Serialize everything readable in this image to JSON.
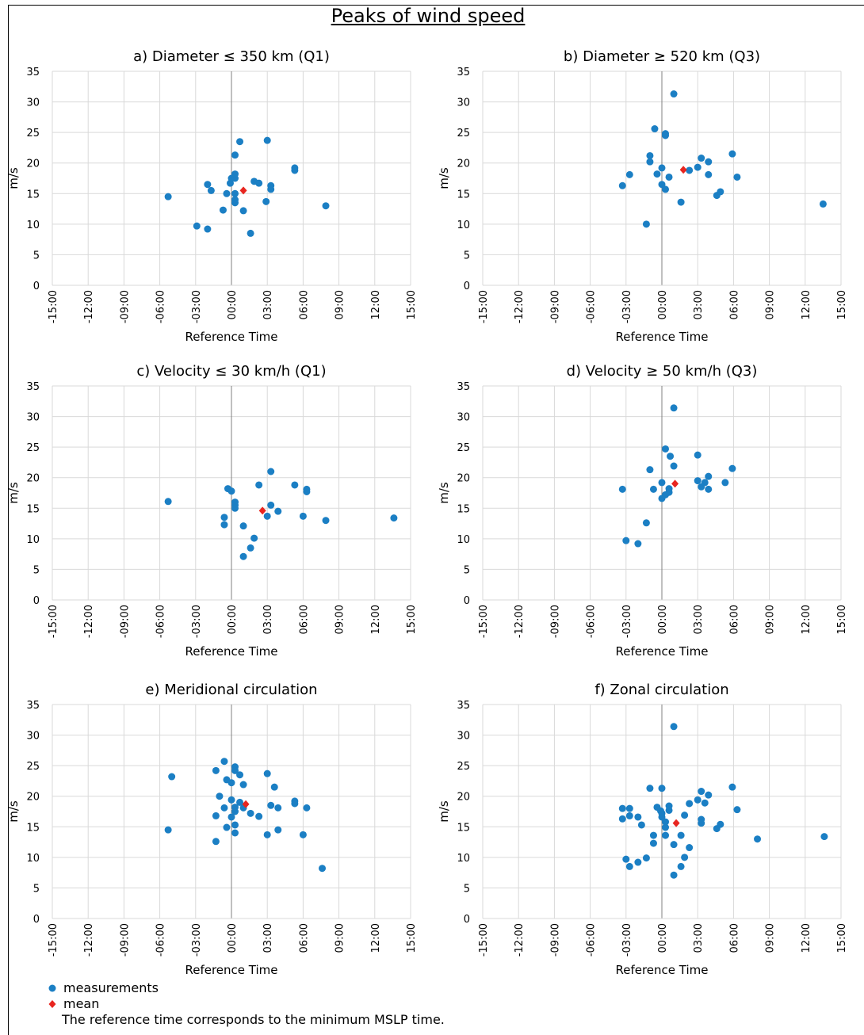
{
  "title": "Peaks of wind speed",
  "colors": {
    "measurements": "#1b7fc4",
    "mean": "#e8251f",
    "grid": "#d9d9d9",
    "axis": "#808080"
  },
  "legend": {
    "measurements_label": "measurements",
    "mean_label": "mean",
    "note": "The reference time corresponds to the minimum MSLP time."
  },
  "chart_data": [
    {
      "type": "scatter",
      "title": "a) Diameter ≤ 350 km (Q1)",
      "xlabel": "Reference Time",
      "ylabel": "m/s",
      "xlim": [
        -15,
        15
      ],
      "ylim": [
        0,
        35
      ],
      "xticks": [
        "-15:00",
        "-12:00",
        "-09:00",
        "-06:00",
        "-03:00",
        "00:00",
        "03:00",
        "06:00",
        "09:00",
        "12:00",
        "15:00"
      ],
      "yticks": [
        "0",
        "5",
        "10",
        "15",
        "20",
        "25",
        "30",
        "35"
      ],
      "series": [
        {
          "name": "measurements",
          "points": [
            [
              -5.3,
              14.5
            ],
            [
              -2.9,
              9.7
            ],
            [
              -2.0,
              9.2
            ],
            [
              -2.0,
              16.5
            ],
            [
              -1.7,
              15.5
            ],
            [
              -0.7,
              12.3
            ],
            [
              -0.4,
              15.0
            ],
            [
              -0.1,
              16.7
            ],
            [
              0.0,
              17.5
            ],
            [
              0.3,
              13.5
            ],
            [
              0.3,
              14.0
            ],
            [
              0.3,
              15.0
            ],
            [
              0.3,
              17.5
            ],
            [
              0.3,
              18.2
            ],
            [
              0.3,
              21.3
            ],
            [
              0.7,
              23.5
            ],
            [
              1.0,
              12.2
            ],
            [
              1.6,
              8.5
            ],
            [
              1.9,
              17.0
            ],
            [
              2.3,
              16.7
            ],
            [
              2.9,
              13.7
            ],
            [
              3.0,
              23.7
            ],
            [
              3.3,
              15.7
            ],
            [
              3.3,
              16.3
            ],
            [
              5.3,
              18.8
            ],
            [
              5.3,
              19.2
            ],
            [
              7.9,
              13.0
            ]
          ]
        },
        {
          "name": "mean",
          "points": [
            [
              1.0,
              15.5
            ]
          ]
        }
      ]
    },
    {
      "type": "scatter",
      "title": "b) Diameter ≥ 520 km (Q3)",
      "xlabel": "Reference Time",
      "ylabel": "m/s",
      "xlim": [
        -15,
        15
      ],
      "ylim": [
        0,
        35
      ],
      "xticks": [
        "-15:00",
        "-12:00",
        "-09:00",
        "-06:00",
        "-03:00",
        "00:00",
        "03:00",
        "06:00",
        "09:00",
        "12:00",
        "15:00"
      ],
      "yticks": [
        "0",
        "5",
        "10",
        "15",
        "20",
        "25",
        "30",
        "35"
      ],
      "series": [
        {
          "name": "measurements",
          "points": [
            [
              -3.3,
              16.3
            ],
            [
              -2.7,
              18.1
            ],
            [
              -1.3,
              10.0
            ],
            [
              -1.0,
              21.2
            ],
            [
              -1.0,
              20.2
            ],
            [
              -0.6,
              25.6
            ],
            [
              -0.4,
              18.2
            ],
            [
              0.0,
              19.2
            ],
            [
              0.0,
              16.5
            ],
            [
              0.3,
              24.5
            ],
            [
              0.3,
              24.8
            ],
            [
              0.3,
              15.7
            ],
            [
              0.6,
              17.7
            ],
            [
              1.0,
              31.3
            ],
            [
              1.6,
              13.6
            ],
            [
              2.3,
              18.8
            ],
            [
              3.0,
              19.3
            ],
            [
              3.3,
              20.8
            ],
            [
              3.9,
              20.2
            ],
            [
              3.9,
              18.1
            ],
            [
              4.6,
              14.7
            ],
            [
              4.9,
              15.3
            ],
            [
              5.9,
              21.5
            ],
            [
              6.3,
              17.7
            ],
            [
              13.5,
              13.3
            ]
          ]
        },
        {
          "name": "mean",
          "points": [
            [
              1.8,
              18.9
            ]
          ]
        }
      ]
    },
    {
      "type": "scatter",
      "title": "c) Velocity ≤ 30 km/h (Q1)",
      "xlabel": "Reference Time",
      "ylabel": "m/s",
      "xlim": [
        -15,
        15
      ],
      "ylim": [
        0,
        35
      ],
      "xticks": [
        "-15:00",
        "-12:00",
        "-09:00",
        "-06:00",
        "-03:00",
        "00:00",
        "03:00",
        "06:00",
        "09:00",
        "12:00",
        "15:00"
      ],
      "yticks": [
        "0",
        "5",
        "10",
        "15",
        "20",
        "25",
        "30",
        "35"
      ],
      "series": [
        {
          "name": "measurements",
          "points": [
            [
              -5.3,
              16.1
            ],
            [
              -0.6,
              13.5
            ],
            [
              -0.6,
              12.3
            ],
            [
              -0.3,
              18.2
            ],
            [
              0.0,
              17.8
            ],
            [
              0.3,
              16.0
            ],
            [
              0.3,
              15.5
            ],
            [
              0.3,
              15.0
            ],
            [
              1.0,
              12.1
            ],
            [
              1.0,
              7.1
            ],
            [
              1.6,
              8.5
            ],
            [
              1.9,
              10.1
            ],
            [
              2.3,
              18.8
            ],
            [
              3.0,
              13.7
            ],
            [
              3.3,
              15.5
            ],
            [
              3.3,
              21.0
            ],
            [
              3.9,
              14.5
            ],
            [
              5.3,
              18.8
            ],
            [
              6.0,
              13.7
            ],
            [
              6.3,
              18.1
            ],
            [
              6.3,
              17.7
            ],
            [
              7.9,
              13.0
            ],
            [
              13.6,
              13.4
            ]
          ]
        },
        {
          "name": "mean",
          "points": [
            [
              2.6,
              14.6
            ]
          ]
        }
      ]
    },
    {
      "type": "scatter",
      "title": "d) Velocity ≥ 50 km/h (Q3)",
      "xlabel": "Reference Time",
      "ylabel": "m/s",
      "xlim": [
        -15,
        15
      ],
      "ylim": [
        0,
        35
      ],
      "xticks": [
        "-15:00",
        "-12:00",
        "-09:00",
        "-06:00",
        "-03:00",
        "00:00",
        "03:00",
        "06:00",
        "09:00",
        "12:00",
        "15:00"
      ],
      "yticks": [
        "0",
        "5",
        "10",
        "15",
        "20",
        "25",
        "30",
        "35"
      ],
      "series": [
        {
          "name": "measurements",
          "points": [
            [
              -3.3,
              18.1
            ],
            [
              -3.0,
              9.7
            ],
            [
              -2.0,
              9.2
            ],
            [
              -1.3,
              12.6
            ],
            [
              -1.0,
              21.3
            ],
            [
              -0.7,
              18.1
            ],
            [
              0.0,
              19.2
            ],
            [
              0.0,
              16.6
            ],
            [
              0.3,
              17.2
            ],
            [
              0.3,
              24.7
            ],
            [
              0.6,
              17.6
            ],
            [
              0.6,
              18.2
            ],
            [
              0.7,
              23.5
            ],
            [
              1.0,
              21.9
            ],
            [
              1.0,
              31.4
            ],
            [
              3.0,
              23.7
            ],
            [
              3.0,
              19.5
            ],
            [
              3.3,
              18.5
            ],
            [
              3.6,
              19.2
            ],
            [
              3.9,
              20.2
            ],
            [
              3.9,
              18.1
            ],
            [
              5.3,
              19.2
            ],
            [
              5.9,
              21.5
            ]
          ]
        },
        {
          "name": "mean",
          "points": [
            [
              1.1,
              19.0
            ]
          ]
        }
      ]
    },
    {
      "type": "scatter",
      "title": "e) Meridional circulation",
      "xlabel": "Reference Time",
      "ylabel": "m/s",
      "xlim": [
        -15,
        15
      ],
      "ylim": [
        0,
        35
      ],
      "xticks": [
        "-15:00",
        "-12:00",
        "-09:00",
        "-06:00",
        "-03:00",
        "00:00",
        "03:00",
        "06:00",
        "09:00",
        "12:00",
        "15:00"
      ],
      "yticks": [
        "0",
        "5",
        "10",
        "15",
        "20",
        "25",
        "30",
        "35"
      ],
      "series": [
        {
          "name": "measurements",
          "points": [
            [
              -5.3,
              14.5
            ],
            [
              -5.0,
              23.2
            ],
            [
              -1.3,
              24.2
            ],
            [
              -1.3,
              16.8
            ],
            [
              -1.3,
              12.6
            ],
            [
              -1.0,
              20.0
            ],
            [
              -0.6,
              25.7
            ],
            [
              -0.6,
              18.1
            ],
            [
              -0.4,
              22.7
            ],
            [
              -0.4,
              14.9
            ],
            [
              0.0,
              19.4
            ],
            [
              0.0,
              16.6
            ],
            [
              0.0,
              22.2
            ],
            [
              0.3,
              24.8
            ],
            [
              0.3,
              24.2
            ],
            [
              0.3,
              18.2
            ],
            [
              0.3,
              17.5
            ],
            [
              0.3,
              15.3
            ],
            [
              0.3,
              14.0
            ],
            [
              0.7,
              23.5
            ],
            [
              0.7,
              19.0
            ],
            [
              1.0,
              21.9
            ],
            [
              1.0,
              18.1
            ],
            [
              1.6,
              17.2
            ],
            [
              2.3,
              16.7
            ],
            [
              3.0,
              13.7
            ],
            [
              3.0,
              23.7
            ],
            [
              3.3,
              18.5
            ],
            [
              3.6,
              21.5
            ],
            [
              3.9,
              18.1
            ],
            [
              3.9,
              14.5
            ],
            [
              5.3,
              19.2
            ],
            [
              5.3,
              18.8
            ],
            [
              6.0,
              13.7
            ],
            [
              6.3,
              18.1
            ],
            [
              7.6,
              8.2
            ]
          ]
        },
        {
          "name": "mean",
          "points": [
            [
              1.2,
              18.7
            ]
          ]
        }
      ]
    },
    {
      "type": "scatter",
      "title": "f) Zonal circulation",
      "xlabel": "Reference Time",
      "ylabel": "m/s",
      "xlim": [
        -15,
        15
      ],
      "ylim": [
        0,
        35
      ],
      "xticks": [
        "-15:00",
        "-12:00",
        "-09:00",
        "-06:00",
        "-03:00",
        "00:00",
        "03:00",
        "06:00",
        "09:00",
        "12:00",
        "15:00"
      ],
      "yticks": [
        "0",
        "5",
        "10",
        "15",
        "20",
        "25",
        "30",
        "35"
      ],
      "series": [
        {
          "name": "measurements",
          "points": [
            [
              -3.3,
              16.3
            ],
            [
              -3.3,
              18.0
            ],
            [
              -3.0,
              9.7
            ],
            [
              -2.7,
              18.0
            ],
            [
              -2.7,
              16.8
            ],
            [
              -2.7,
              8.5
            ],
            [
              -2.0,
              16.6
            ],
            [
              -2.0,
              9.2
            ],
            [
              -1.7,
              15.3
            ],
            [
              -1.3,
              9.9
            ],
            [
              -1.0,
              21.3
            ],
            [
              -0.7,
              13.6
            ],
            [
              -0.7,
              12.3
            ],
            [
              -0.4,
              18.2
            ],
            [
              -0.1,
              17.6
            ],
            [
              0.0,
              16.6
            ],
            [
              0.0,
              17.2
            ],
            [
              0.0,
              21.3
            ],
            [
              0.3,
              15.8
            ],
            [
              0.3,
              13.6
            ],
            [
              0.3,
              14.9
            ],
            [
              0.6,
              17.7
            ],
            [
              0.6,
              18.4
            ],
            [
              1.0,
              12.1
            ],
            [
              1.0,
              31.4
            ],
            [
              1.0,
              7.1
            ],
            [
              1.6,
              13.6
            ],
            [
              1.6,
              8.5
            ],
            [
              1.9,
              16.9
            ],
            [
              1.9,
              10.0
            ],
            [
              2.3,
              18.8
            ],
            [
              2.3,
              11.6
            ],
            [
              3.0,
              19.4
            ],
            [
              3.3,
              20.8
            ],
            [
              3.3,
              16.2
            ],
            [
              3.3,
              15.6
            ],
            [
              3.6,
              18.9
            ],
            [
              3.9,
              20.2
            ],
            [
              4.6,
              14.7
            ],
            [
              4.9,
              15.4
            ],
            [
              5.9,
              21.5
            ],
            [
              6.3,
              17.8
            ],
            [
              8.0,
              13.0
            ],
            [
              13.6,
              13.4
            ]
          ]
        },
        {
          "name": "mean",
          "points": [
            [
              1.2,
              15.6
            ]
          ]
        }
      ]
    }
  ]
}
